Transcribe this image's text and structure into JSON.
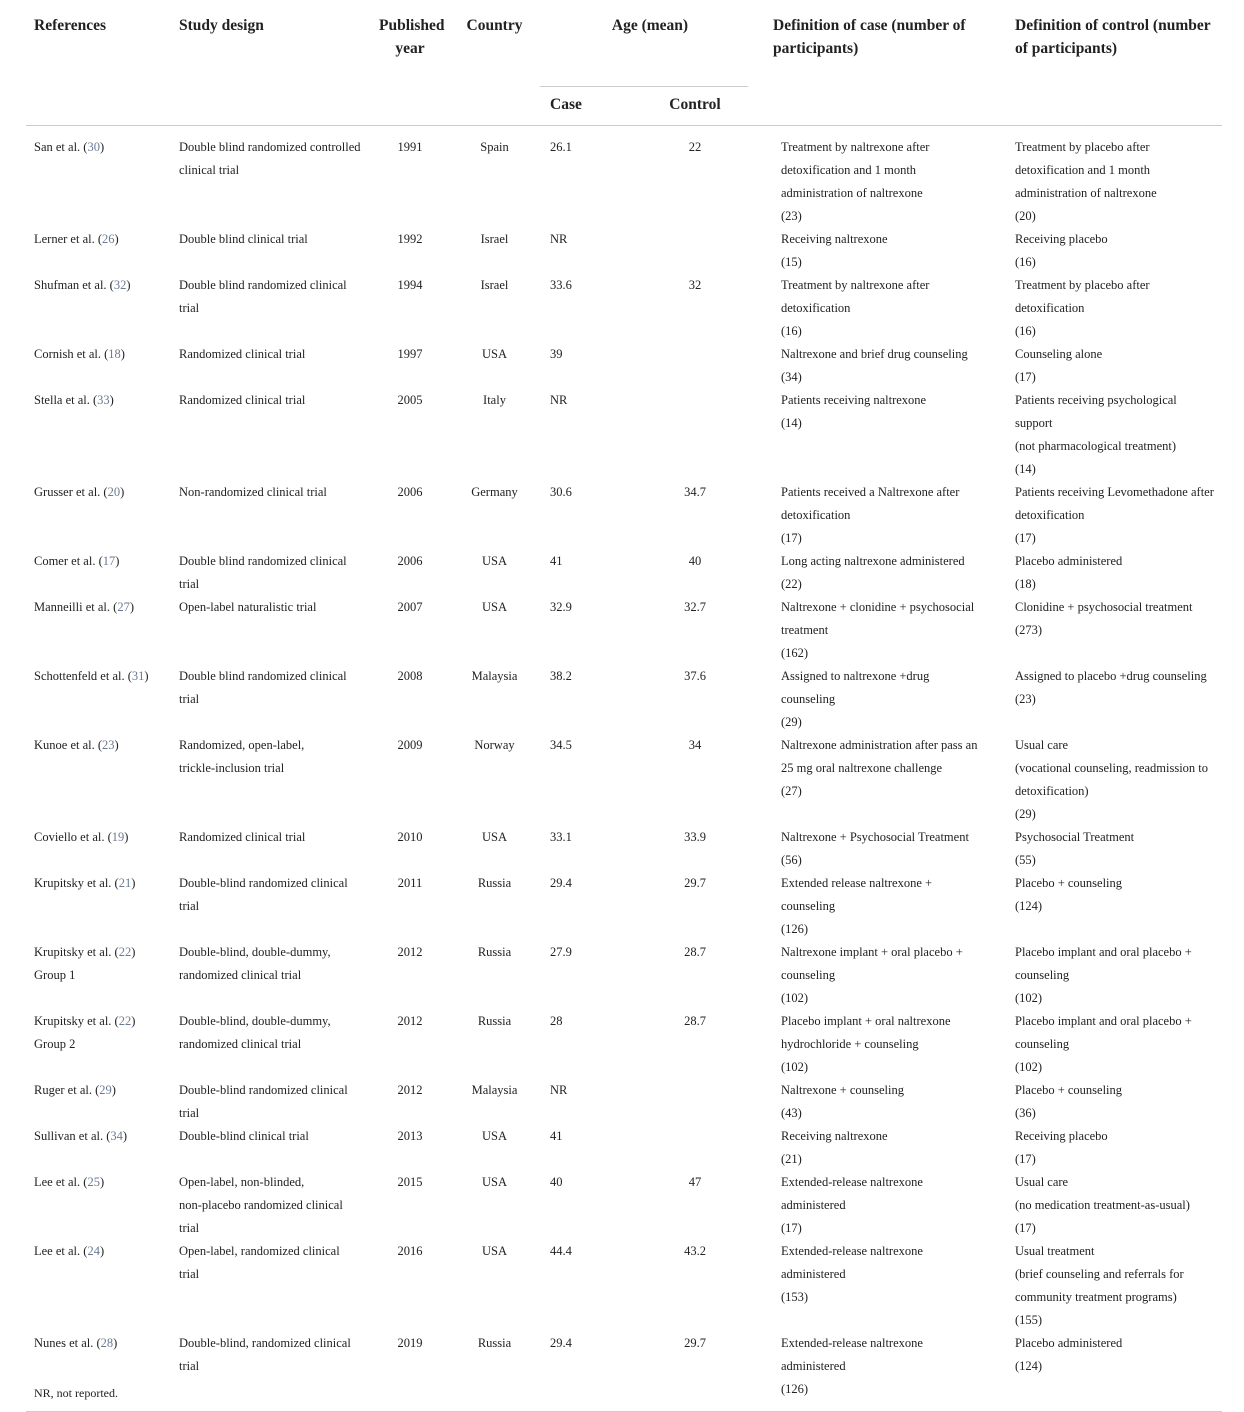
{
  "headers": {
    "references": "References",
    "study_design": "Study design",
    "published_year": "Published year",
    "country": "Country",
    "age": "Age (mean)",
    "case": "Case",
    "control": "Control",
    "def_case": "Definition of case (number of participants)",
    "def_control": "Definition of control (number of participants)"
  },
  "rows": [
    {
      "ref": "San et al. (",
      "num": "30",
      "design": "Double blind randomized controlled clinical trial",
      "year": "1991",
      "country": "Spain",
      "case_age": "26.1",
      "control_age": "22",
      "def_case": "Treatment by naltrexone after\ndetoxification and 1 month\nadministration of naltrexone\n(23)",
      "def_control": "Treatment by placebo after\ndetoxification and 1 month\nadministration of naltrexone\n(20)"
    },
    {
      "ref": "Lerner et al. (",
      "num": "26",
      "design": "Double blind clinical trial",
      "year": "1992",
      "country": "Israel",
      "case_age": "NR",
      "control_age": "",
      "def_case": "Receiving naltrexone\n(15)",
      "def_control": "Receiving placebo\n(16)"
    },
    {
      "ref": "Shufman et al. (",
      "num": "32",
      "design": "Double blind randomized clinical trial",
      "year": "1994",
      "country": "Israel",
      "case_age": "33.6",
      "control_age": "32",
      "def_case": "Treatment by naltrexone after\ndetoxification\n(16)",
      "def_control": "Treatment by placebo after\ndetoxification\n(16)"
    },
    {
      "ref": "Cornish et al. (",
      "num": "18",
      "design": "Randomized clinical trial",
      "year": "1997",
      "country": "USA",
      "case_age": "39",
      "control_age": "",
      "def_case": "Naltrexone and brief drug counseling\n(34)",
      "def_control": "Counseling alone\n(17)"
    },
    {
      "ref": "Stella et al. (",
      "num": "33",
      "design": "Randomized clinical trial",
      "year": "2005",
      "country": "Italy",
      "case_age": "NR",
      "control_age": "",
      "def_case": "Patients receiving naltrexone\n(14)",
      "def_control": "Patients receiving psychological support\n(not pharmacological treatment)\n(14)"
    },
    {
      "ref": "Grusser et al. (",
      "num": "20",
      "design": "Non-randomized clinical trial",
      "year": "2006",
      "country": "Germany",
      "case_age": "30.6",
      "control_age": "34.7",
      "def_case": "Patients received a Naltrexone after\ndetoxification\n(17)",
      "def_control": "Patients receiving Levomethadone after\ndetoxification\n(17)"
    },
    {
      "ref": "Comer et al. (",
      "num": "17",
      "design": "Double blind randomized clinical trial",
      "year": "2006",
      "country": "USA",
      "case_age": "41",
      "control_age": "40",
      "def_case": "Long acting naltrexone administered\n(22)",
      "def_control": "Placebo administered\n(18)"
    },
    {
      "ref": "Manneilli et al. (",
      "num": "27",
      "design": "Open-label naturalistic trial",
      "year": "2007",
      "country": "USA",
      "case_age": "32.9",
      "control_age": "32.7",
      "def_case": "Naltrexone + clonidine + psychosocial\ntreatment\n(162)",
      "def_control": "Clonidine + psychosocial treatment\n(273)"
    },
    {
      "ref": "Schottenfeld et al. (",
      "num": "31",
      "design": "Double blind randomized clinical trial",
      "year": "2008",
      "country": "Malaysia",
      "case_age": "38.2",
      "control_age": "37.6",
      "def_case": "Assigned to naltrexone +drug\ncounseling\n(29)",
      "def_control": "Assigned to placebo +drug counseling\n(23)"
    },
    {
      "ref": "Kunoe et al. (",
      "num": "23",
      "design": "Randomized, open-label,\ntrickle-inclusion trial",
      "year": "2009",
      "country": "Norway",
      "case_age": "34.5",
      "control_age": "34",
      "def_case": "Naltrexone administration after pass an\n25 mg oral naltrexone challenge\n(27)",
      "def_control": "Usual care\n(vocational counseling, readmission to\ndetoxification)\n(29)"
    },
    {
      "ref": "Coviello et al. (",
      "num": "19",
      "design": "Randomized clinical trial",
      "year": "2010",
      "country": "USA",
      "case_age": "33.1",
      "control_age": "33.9",
      "def_case": "Naltrexone + Psychosocial Treatment\n(56)",
      "def_control": "Psychosocial Treatment\n(55)"
    },
    {
      "ref": "Krupitsky et al. (",
      "num": "21",
      "design": "Double-blind randomized clinical trial",
      "year": "2011",
      "country": "Russia",
      "case_age": "29.4",
      "control_age": "29.7",
      "def_case": "Extended release naltrexone +\ncounseling\n(126)",
      "def_control": "Placebo + counseling\n(124)"
    },
    {
      "ref": "Krupitsky et al. (",
      "num": "22",
      "ref_suffix": "Group 1",
      "design": "Double-blind, double-dummy,\nrandomized clinical trial",
      "year": "2012",
      "country": "Russia",
      "case_age": "27.9",
      "control_age": "28.7",
      "def_case": "Naltrexone implant + oral placebo +\ncounseling\n(102)",
      "def_control": "Placebo implant and oral placebo +\ncounseling\n(102)"
    },
    {
      "ref": "Krupitsky et al. (",
      "num": "22",
      "ref_suffix": "Group 2",
      "design": "Double-blind, double-dummy,\nrandomized clinical trial",
      "year": "2012",
      "country": "Russia",
      "case_age": "28",
      "control_age": "28.7",
      "def_case": "Placebo implant + oral naltrexone\nhydrochloride + counseling\n(102)",
      "def_control": "Placebo implant and oral placebo +\ncounseling\n(102)"
    },
    {
      "ref": "Ruger et al. (",
      "num": "29",
      "design": "Double-blind randomized clinical trial",
      "year": "2012",
      "country": "Malaysia",
      "case_age": "NR",
      "control_age": "",
      "def_case": "Naltrexone + counseling\n(43)",
      "def_control": "Placebo + counseling\n(36)"
    },
    {
      "ref": "Sullivan et al. (",
      "num": "34",
      "design": "Double-blind clinical trial",
      "year": "2013",
      "country": "USA",
      "case_age": "41",
      "control_age": "",
      "def_case": "Receiving naltrexone\n(21)",
      "def_control": "Receiving placebo\n(17)"
    },
    {
      "ref": "Lee et al. (",
      "num": "25",
      "design": "Open-label, non-blinded,\nnon-placebo randomized clinical\ntrial",
      "year": "2015",
      "country": "USA",
      "case_age": "40",
      "control_age": "47",
      "def_case": "Extended-release naltrexone\nadministered\n(17)",
      "def_control": "Usual care\n(no medication treatment-as-usual)\n(17)"
    },
    {
      "ref": "Lee et al. (",
      "num": "24",
      "design": "Open-label, randomized clinical\ntrial",
      "year": "2016",
      "country": "USA",
      "case_age": "44.4",
      "control_age": "43.2",
      "def_case": "Extended-release naltrexone\nadministered\n(153)",
      "def_control": "Usual treatment\n(brief counseling and referrals for\ncommunity treatment programs)\n(155)"
    },
    {
      "ref": "Nunes et al. (",
      "num": "28",
      "design": "Double-blind, randomized clinical\ntrial",
      "year": "2019",
      "country": "Russia",
      "case_age": "29.4",
      "control_age": "29.7",
      "def_case": "Extended-release naltrexone\nadministered\n(126)",
      "def_control": "Placebo administered\n(124)"
    }
  ],
  "footnote": "NR, not reported.",
  "colors": {
    "reference_link": "#6a7a94",
    "rule": "#cccccc"
  }
}
